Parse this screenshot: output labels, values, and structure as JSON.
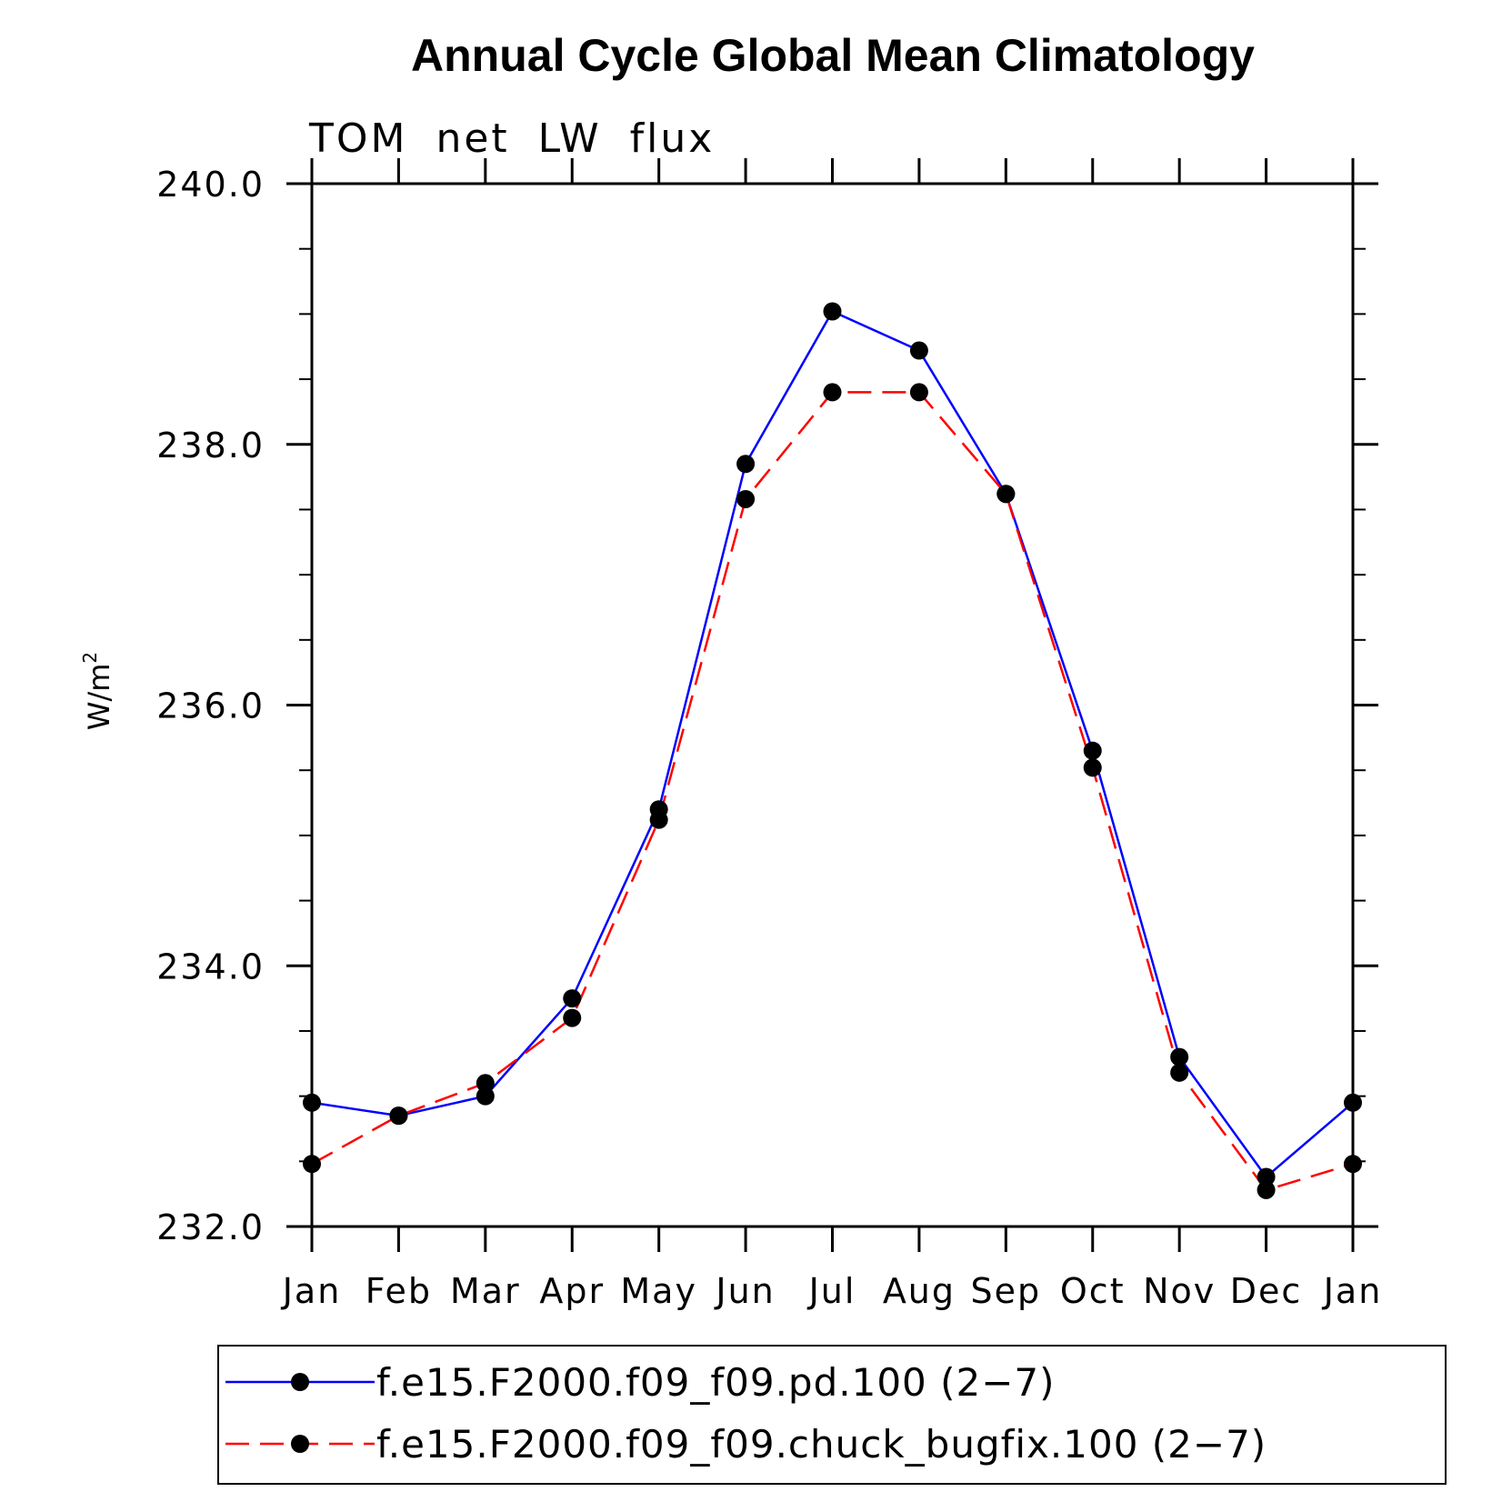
{
  "chart_data": {
    "type": "line",
    "title": "Annual Cycle Global Mean Climatology",
    "subtitle": "TOM net LW flux",
    "ylabel_base": "W/m",
    "ylabel_sup": "2",
    "xlabel": "",
    "categories": [
      "Jan",
      "Feb",
      "Mar",
      "Apr",
      "May",
      "Jun",
      "Jul",
      "Aug",
      "Sep",
      "Oct",
      "Nov",
      "Dec",
      "Jan"
    ],
    "ylim": [
      232.0,
      240.0
    ],
    "y_major_ticks": [
      "240.0",
      "238.0",
      "236.0",
      "234.0",
      "232.0"
    ],
    "y_major_values": [
      240.0,
      238.0,
      236.0,
      234.0,
      232.0
    ],
    "y_minor_step": 0.5,
    "grid": false,
    "legend_position": "bottom",
    "series": [
      {
        "name": "f.e15.F2000.f09_f09.pd.100 (2−7)",
        "color": "#0000ff",
        "line_style": "solid",
        "marker": "filled-circle",
        "values": [
          232.95,
          232.85,
          233.0,
          233.75,
          235.2,
          237.85,
          239.02,
          238.72,
          237.62,
          235.65,
          233.3,
          232.38,
          232.95
        ]
      },
      {
        "name": "f.e15.F2000.f09_f09.chuck_bugfix.100 (2−7)",
        "color": "#ff0000",
        "line_style": "dashed",
        "marker": "filled-circle",
        "values": [
          232.48,
          232.85,
          233.1,
          233.6,
          235.12,
          237.58,
          238.4,
          238.4,
          237.62,
          235.52,
          233.18,
          232.28,
          232.48
        ]
      }
    ]
  }
}
